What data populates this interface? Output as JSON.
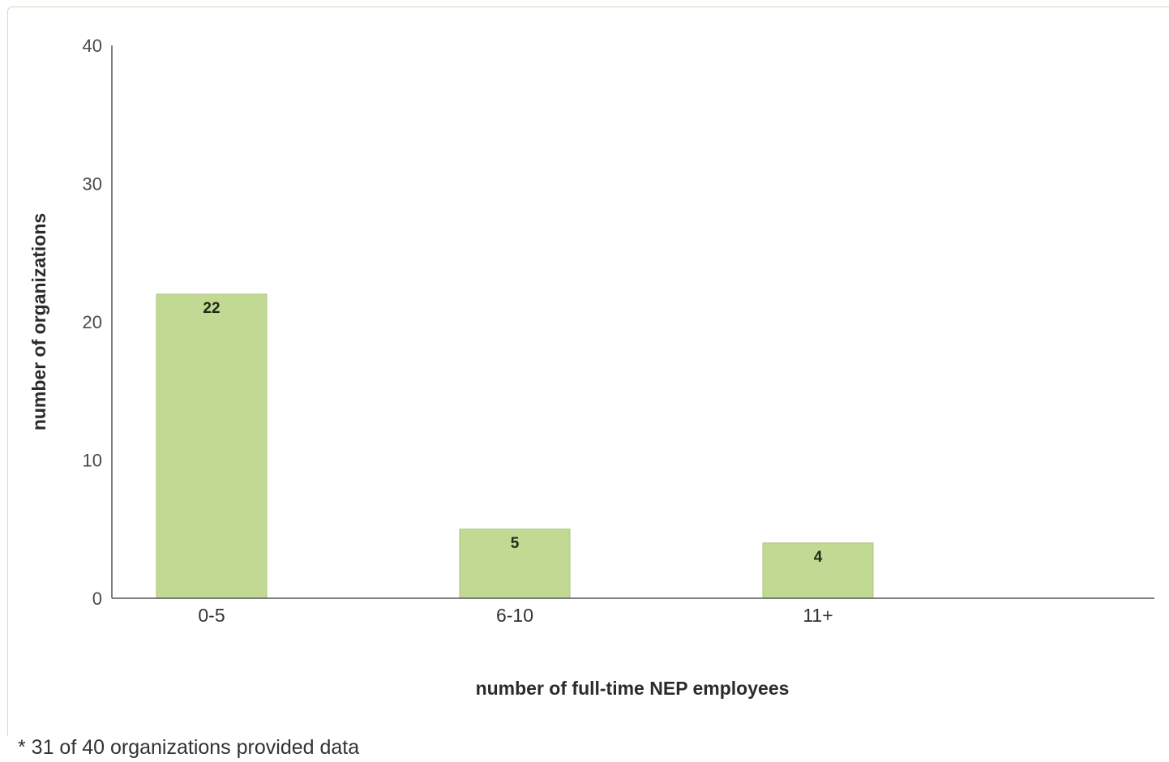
{
  "chart_data": {
    "type": "bar",
    "categories": [
      "0-5",
      "6-10",
      "11+"
    ],
    "values": [
      22,
      5,
      4
    ],
    "data_labels": [
      "22",
      "5",
      "4"
    ],
    "title": "",
    "xlabel": "number of full-time NEP employees",
    "ylabel": "number of organizations",
    "ylim": [
      0,
      40
    ],
    "yticks": [
      0,
      10,
      20,
      30,
      40
    ],
    "grid": false,
    "bar_color": "#c2d994",
    "bar_edge_color": "#aac47a"
  },
  "footnote": "* 31 of 40 organizations provided data"
}
